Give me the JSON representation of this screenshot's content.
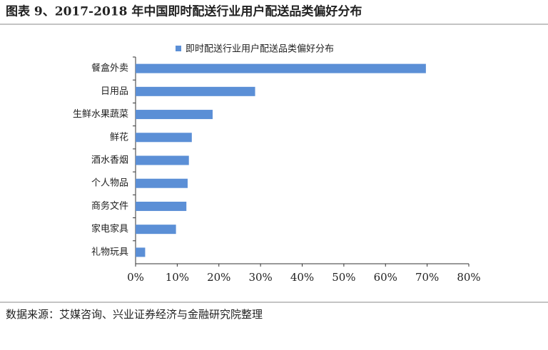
{
  "chart_data": {
    "type": "hbar",
    "title": "图表 9、2017-2018 年中国即时配送行业用户配送品类偏好分布",
    "source": "数据来源：艾媒咨询、兴业证券经济与金融研究院整理",
    "categories": [
      "餐盒外卖",
      "日用品",
      "生鲜水果蔬菜",
      "鲜花",
      "酒水香烟",
      "个人物品",
      "商务文件",
      "家电家具",
      "礼物玩具"
    ],
    "series": [
      {
        "name": "即时配送行业用户配送品类偏好分布",
        "color": "#5b8fd6",
        "values": [
          69.7,
          28.7,
          18.5,
          13.5,
          12.8,
          12.5,
          12.2,
          9.7,
          2.3
        ]
      }
    ],
    "xlim": [
      0,
      80
    ],
    "xticks": [
      {
        "value": 0,
        "label": "0%"
      },
      {
        "value": 10,
        "label": "10%"
      },
      {
        "value": 20,
        "label": "20%"
      },
      {
        "value": 30,
        "label": "30%"
      },
      {
        "value": 40,
        "label": "40%"
      },
      {
        "value": 50,
        "label": "50%"
      },
      {
        "value": 60,
        "label": "60%"
      },
      {
        "value": 70,
        "label": "70%"
      },
      {
        "value": 80,
        "label": "80%"
      }
    ],
    "legend": "top"
  }
}
